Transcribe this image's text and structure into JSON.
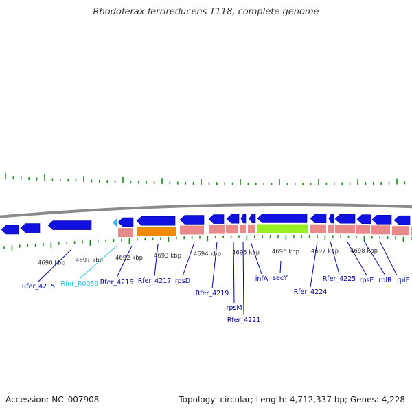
{
  "title": "Rhodoferax ferrireducens T118, complete genome",
  "footer": {
    "accession": "Accession: NC_007908",
    "summary": "Topology: circular; Length: 4,712,337 bp; Genes: 4,228"
  },
  "colors": {
    "backbone": "#8a8a8a",
    "forward_gene": "#1010e0",
    "reverse_gene": "#1010e0",
    "rna_gene": "#33bbee",
    "cds_band": "#e88a8a",
    "orange_feature": "#f08a00",
    "green_feature": "#99ee22",
    "tick": "#228822",
    "gene_label": "#000099",
    "rna_label": "#33bbee"
  },
  "scale": {
    "kbp_labels": [
      "4690 kbp",
      "4691 kbp",
      "4692 kbp",
      "4693 kbp",
      "4694 kbp",
      "4695 kbp",
      "4696 kbp",
      "4697 kbp",
      "4698 kbp"
    ]
  },
  "genes": [
    {
      "label": "Rfer_4215",
      "type": "protein"
    },
    {
      "label": "Rfer_R0059",
      "type": "rna"
    },
    {
      "label": "Rfer_4216",
      "type": "protein"
    },
    {
      "label": "Rfer_4217",
      "type": "protein"
    },
    {
      "label": "rpsD",
      "type": "protein"
    },
    {
      "label": "Rfer_4219",
      "type": "protein"
    },
    {
      "label": "rpsM",
      "type": "protein"
    },
    {
      "label": "Rfer_4221",
      "type": "protein"
    },
    {
      "label": "infA",
      "type": "protein"
    },
    {
      "label": "secY",
      "type": "protein"
    },
    {
      "label": "Rfer_4224",
      "type": "protein"
    },
    {
      "label": "Rfer_4225",
      "type": "protein"
    },
    {
      "label": "rpsE",
      "type": "protein"
    },
    {
      "label": "rplR",
      "type": "protein"
    },
    {
      "label": "rplF",
      "type": "protein"
    }
  ]
}
